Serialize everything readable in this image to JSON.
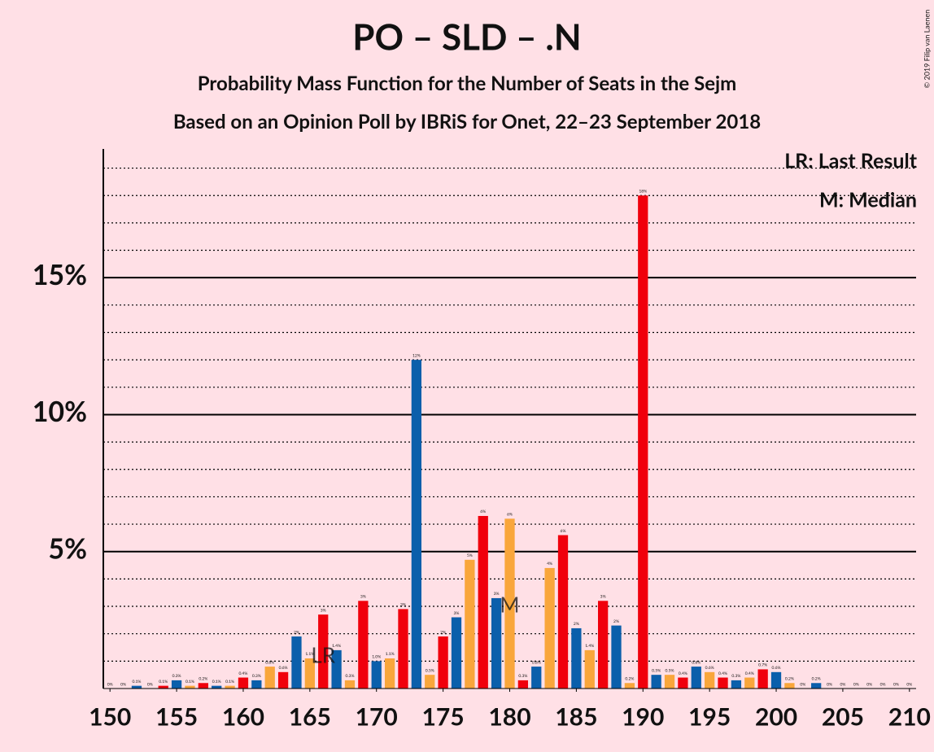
{
  "chart_data": {
    "type": "bar",
    "title": "PO – SLD – .N",
    "subtitle": "Probability Mass Function for the Number of Seats in the Sejm",
    "subtitle2": "Based on an Opinion Poll by IBRiS for Onet, 22–23 September 2018",
    "copyright": "© 2019 Filip van Laenen",
    "legend_lr": "LR: Last Result",
    "legend_m": "M: Median",
    "lr_label": "LR",
    "last_result": 166,
    "m_label": "M",
    "median": 180,
    "palette": [
      "#0b5fab",
      "#f9a63b",
      "#f0000c"
    ],
    "x": [
      150,
      151,
      152,
      153,
      154,
      155,
      156,
      157,
      158,
      159,
      160,
      161,
      162,
      163,
      164,
      165,
      166,
      167,
      168,
      169,
      170,
      171,
      172,
      173,
      174,
      175,
      176,
      177,
      178,
      179,
      180,
      181,
      182,
      183,
      184,
      185,
      186,
      187,
      188,
      189,
      190,
      191,
      192,
      193,
      194,
      195,
      196,
      197,
      198,
      199,
      200,
      201,
      202,
      203,
      204,
      205,
      206,
      207,
      208,
      209,
      210
    ],
    "values": [
      0,
      0,
      0.1,
      0,
      0.1,
      0.3,
      0.1,
      0.2,
      0.1,
      0.1,
      0.4,
      0.3,
      0.8,
      0.6,
      1.9,
      1.1,
      2.7,
      1.4,
      0.3,
      3.2,
      1.0,
      1.1,
      2.9,
      12,
      0.5,
      1.9,
      2.6,
      4.7,
      6.3,
      3.3,
      6.2,
      0.3,
      0.8,
      4.4,
      5.6,
      2.2,
      1.4,
      3.2,
      2.3,
      0.2,
      18,
      0.5,
      0.5,
      0.4,
      0.8,
      0.6,
      0.4,
      0.3,
      0.4,
      0.7,
      0.6,
      0.2,
      0,
      0.2,
      0,
      0,
      0,
      0,
      0,
      0,
      0
    ],
    "value_labels": [
      "0%",
      "0%",
      "0.1%",
      "0%",
      "0.1%",
      "0.3%",
      "0.1%",
      "0.2%",
      "0.1%",
      "0.1%",
      "0.4%",
      "0.3%",
      "0.8%",
      "0.6%",
      "2%",
      "1.1%",
      "3%",
      "1.4%",
      "0.3%",
      "3%",
      "1.0%",
      "1.1%",
      "3%",
      "12%",
      "0.5%",
      "2%",
      "3%",
      "5%",
      "6%",
      "3%",
      "6%",
      "0.3%",
      "0.8%",
      "4%",
      "6%",
      "2%",
      "1.4%",
      "3%",
      "2%",
      "0.2%",
      "18%",
      "0.5%",
      "0.5%",
      "0.4%",
      "0.8%",
      "0.6%",
      "0.4%",
      "0.3%",
      "0.4%",
      "0.7%",
      "0.6%",
      "0.2%",
      "0%",
      "0.2%",
      "0%",
      "0%",
      "0%",
      "0%",
      "0%",
      "0%",
      "0%"
    ],
    "xlim": [
      149.5,
      210.5
    ],
    "xticks": [
      150,
      155,
      160,
      165,
      170,
      175,
      180,
      185,
      190,
      195,
      200,
      205,
      210
    ],
    "ylim": [
      0,
      19.7
    ],
    "yticks": [
      {
        "value": 5,
        "label": "5%"
      },
      {
        "value": 10,
        "label": "10%"
      },
      {
        "value": 15,
        "label": "15%"
      }
    ],
    "minor_yticks": [
      1,
      2,
      3,
      4,
      6,
      7,
      8,
      9,
      11,
      12,
      13,
      14,
      16,
      17,
      18,
      19
    ],
    "grid": true
  }
}
